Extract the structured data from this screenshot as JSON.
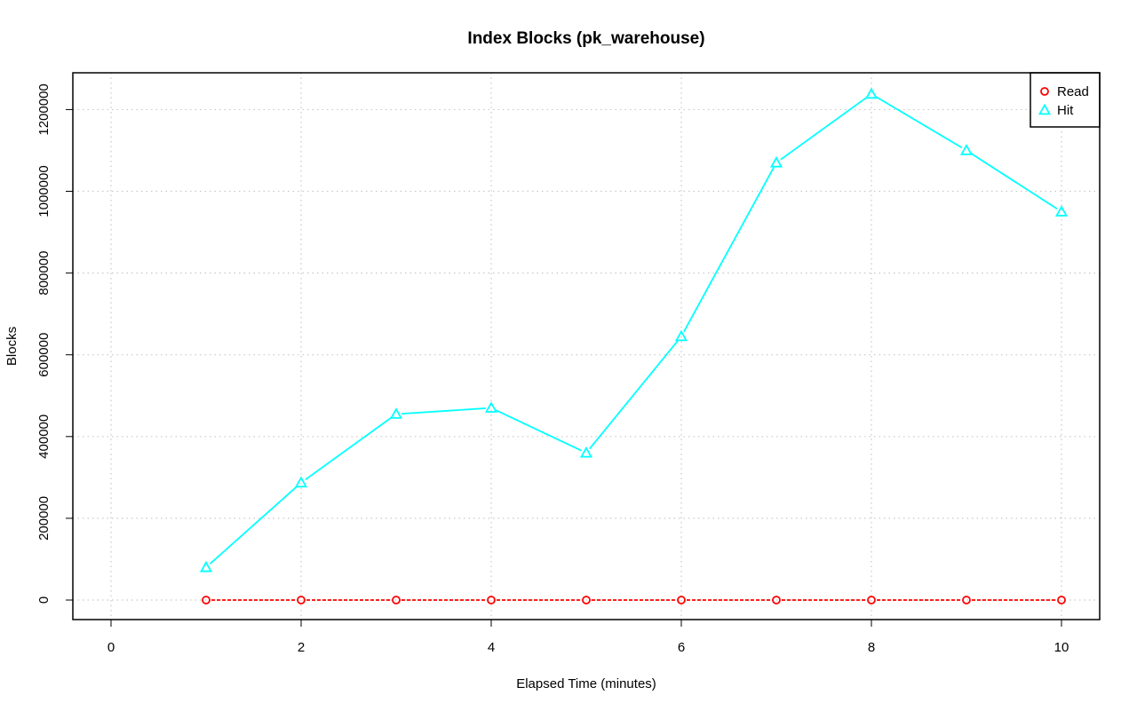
{
  "chart_data": {
    "type": "line",
    "title": "Index Blocks (pk_warehouse)",
    "xlabel": "Elapsed Time (minutes)",
    "ylabel": "Blocks",
    "xlim": [
      0,
      10
    ],
    "ylim": [
      0,
      1240000
    ],
    "x_ticks": [
      0,
      2,
      4,
      6,
      8,
      10
    ],
    "y_ticks": [
      0,
      200000,
      400000,
      600000,
      800000,
      1000000,
      1200000
    ],
    "x_tick_labels": [
      "0",
      "2",
      "4",
      "6",
      "8",
      "10"
    ],
    "y_tick_labels": [
      "0",
      "200000",
      "400000",
      "600000",
      "800000",
      "1000000",
      "1200000"
    ],
    "grid": true,
    "legend_position": "top-right",
    "x": [
      1,
      2,
      3,
      4,
      5,
      6,
      7,
      8,
      9,
      10
    ],
    "series": [
      {
        "name": "Read",
        "color": "#ff0000",
        "marker": "circle",
        "line_style": "dashed",
        "values": [
          0,
          0,
          0,
          0,
          0,
          0,
          0,
          0,
          0,
          0
        ]
      },
      {
        "name": "Hit",
        "color": "#00ffff",
        "marker": "triangle",
        "line_style": "solid",
        "values": [
          80000,
          287000,
          455000,
          470000,
          360000,
          645000,
          1070000,
          1238000,
          1100000,
          950000
        ]
      }
    ]
  }
}
